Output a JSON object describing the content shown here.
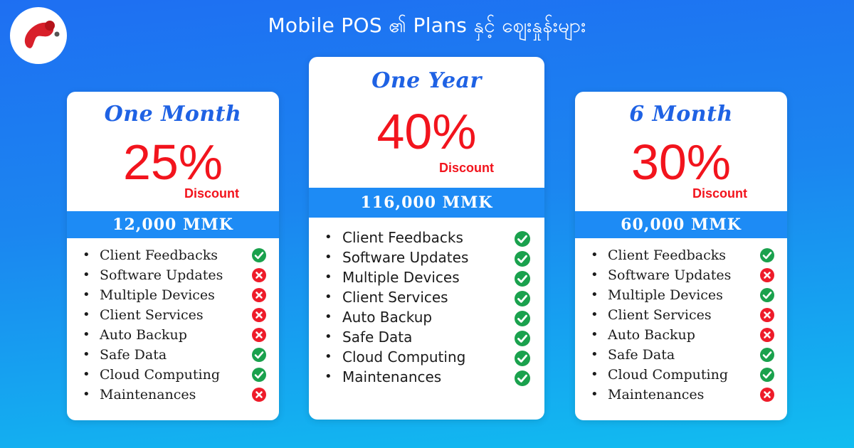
{
  "header": {
    "title": "Mobile POS  ၏ Plans  နှင့် ဈေးနှုန်းများ",
    "logo_icon": "brand-logo-icon"
  },
  "colors": {
    "plan_name": "#1f62e4",
    "discount": "#f2141d",
    "price_band": "#1d8bf5",
    "included": "#1aa14d",
    "excluded": "#ee1c2a"
  },
  "plans": [
    {
      "name": "One Month",
      "discount_value": "25%",
      "discount_label": "Discount",
      "price": "12,000 MMK",
      "features": [
        {
          "label": "Client Feedbacks",
          "included": true
        },
        {
          "label": "Software Updates",
          "included": false
        },
        {
          "label": "Multiple Devices",
          "included": false
        },
        {
          "label": "Client Services",
          "included": false
        },
        {
          "label": "Auto Backup",
          "included": false
        },
        {
          "label": "Safe Data",
          "included": true
        },
        {
          "label": "Cloud Computing",
          "included": true
        },
        {
          "label": "Maintenances",
          "included": false
        }
      ]
    },
    {
      "name": "One Year",
      "discount_value": "40%",
      "discount_label": "Discount",
      "price": "116,000 MMK",
      "features": [
        {
          "label": "Client Feedbacks",
          "included": true
        },
        {
          "label": "Software Updates",
          "included": true
        },
        {
          "label": "Multiple Devices",
          "included": true
        },
        {
          "label": "Client Services",
          "included": true
        },
        {
          "label": "Auto Backup",
          "included": true
        },
        {
          "label": "Safe Data",
          "included": true
        },
        {
          "label": "Cloud Computing",
          "included": true
        },
        {
          "label": "Maintenances",
          "included": true
        }
      ]
    },
    {
      "name": "6 Month",
      "discount_value": "30%",
      "discount_label": "Discount",
      "price": "60,000 MMK",
      "features": [
        {
          "label": "Client Feedbacks",
          "included": true
        },
        {
          "label": "Software Updates",
          "included": false
        },
        {
          "label": "Multiple Devices",
          "included": true
        },
        {
          "label": "Client Services",
          "included": false
        },
        {
          "label": "Auto Backup",
          "included": false
        },
        {
          "label": "Safe Data",
          "included": true
        },
        {
          "label": "Cloud Computing",
          "included": true
        },
        {
          "label": "Maintenances",
          "included": false
        }
      ]
    }
  ]
}
